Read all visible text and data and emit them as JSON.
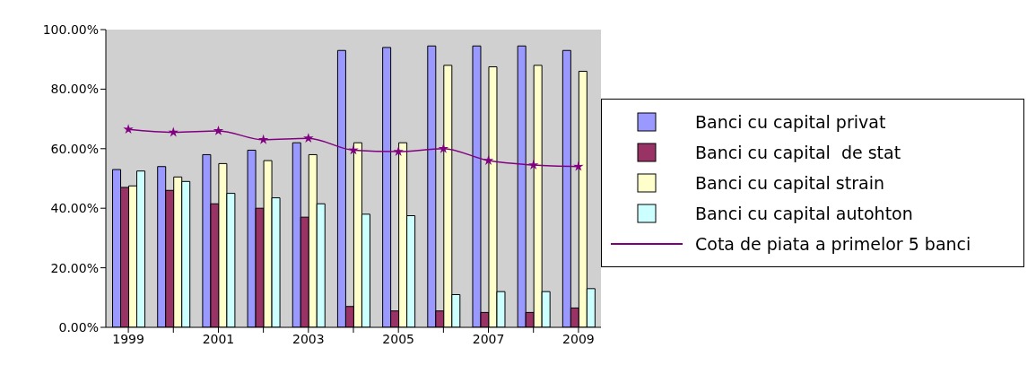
{
  "chart_data": {
    "type": "bar",
    "categories": [
      "1999",
      null,
      "2001",
      null,
      "2003",
      null,
      "2005",
      null,
      "2007",
      null,
      "2009"
    ],
    "series": [
      {
        "name": "Banci cu capital privat",
        "color": "#9999ff",
        "values": [
          53,
          54,
          58,
          59.5,
          62,
          93,
          94,
          94.5,
          94.5,
          94.5,
          93
        ]
      },
      {
        "name": "Banci cu capital  de stat",
        "color": "#993366",
        "values": [
          47,
          46,
          41.5,
          40,
          37,
          7,
          5.5,
          5.5,
          5,
          5,
          6.5
        ]
      },
      {
        "name": "Banci cu capital strain",
        "color": "#ffffcc",
        "values": [
          47.5,
          50.5,
          55,
          56,
          58,
          62,
          62,
          88,
          87.5,
          88,
          86
        ]
      },
      {
        "name": "Banci cu capital autohton",
        "color": "#ccffff",
        "values": [
          52.5,
          49,
          45,
          43.5,
          41.5,
          38,
          37.5,
          11,
          12,
          12,
          13
        ]
      },
      {
        "name": "Cota de piata a primelor 5 banci",
        "type": "line",
        "color": "#800080",
        "marker": "star",
        "values": [
          66.5,
          65.5,
          66,
          63,
          63.5,
          59.5,
          59,
          60,
          56,
          54.5,
          54
        ]
      }
    ],
    "ylim": [
      0,
      100
    ],
    "yticks": [
      {
        "value": 0,
        "label": "0.00%"
      },
      {
        "value": 20,
        "label": "20.00%"
      },
      {
        "value": 40,
        "label": "40.00%"
      },
      {
        "value": 60,
        "label": "60.00%"
      },
      {
        "value": 80,
        "label": "80.00%"
      },
      {
        "value": 100,
        "label": "100.00%"
      }
    ],
    "grid": false,
    "legend": "right"
  }
}
